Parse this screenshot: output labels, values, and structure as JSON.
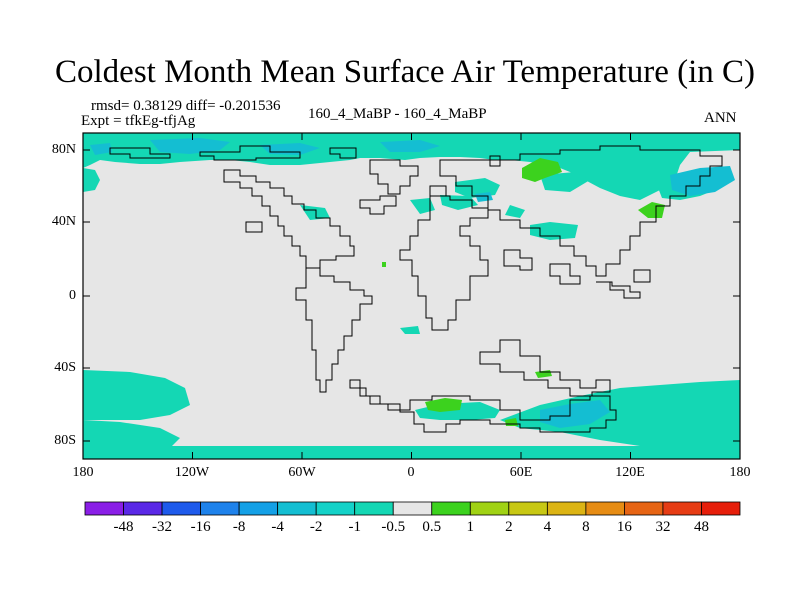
{
  "title": "Coldest Month Mean Surface Air Temperature (in C)",
  "stats_line": "rmsd= 0.38129 diff= -0.201536",
  "expt_line": "Expt = tfkEg-tfjAg",
  "center_label": "160_4_MaBP - 160_4_MaBP",
  "season_label": "ANN",
  "map": {
    "lon_ticks": [
      "180",
      "120W",
      "60W",
      "0",
      "60E",
      "120E",
      "180"
    ],
    "lat_ticks": [
      "80N",
      "40N",
      "0",
      "40S",
      "80S"
    ],
    "background_color": "#e6e6e6",
    "land_outline_color": "#000000"
  },
  "colorbar": {
    "labels": [
      "-48",
      "-32",
      "-16",
      "-8",
      "-4",
      "-2",
      "-1",
      "-0.5",
      "0.5",
      "1",
      "2",
      "4",
      "8",
      "16",
      "32",
      "48"
    ],
    "colors": [
      "#8a1ee6",
      "#5a28e6",
      "#1e5aeb",
      "#1e82eb",
      "#14a0e6",
      "#14bed2",
      "#14d2c8",
      "#14d7b4",
      "#e6e6e6",
      "#3cd21e",
      "#a0d214",
      "#c8c814",
      "#dcb414",
      "#e68c14",
      "#e66414",
      "#e63c14",
      "#e61e0a"
    ]
  }
}
